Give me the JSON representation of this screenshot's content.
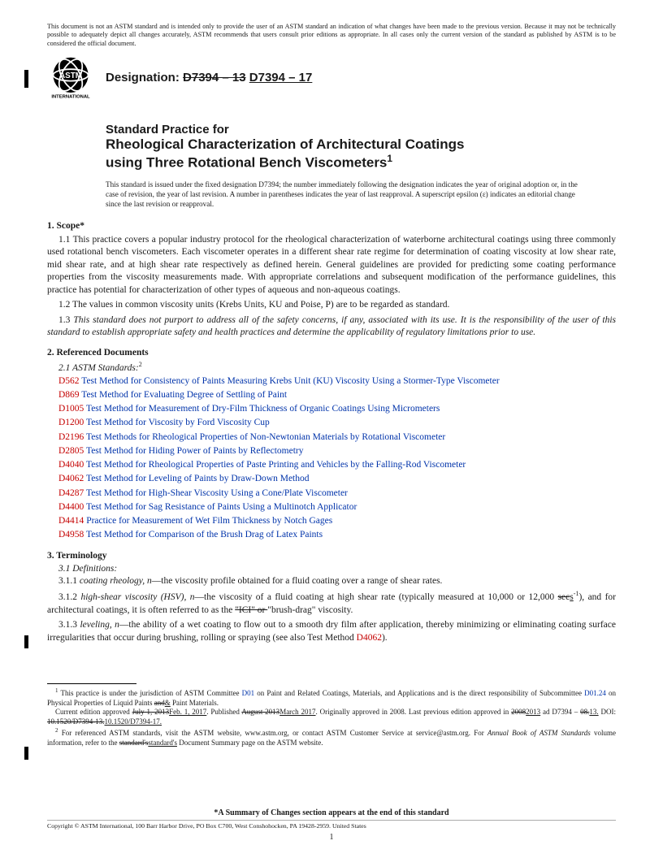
{
  "disclaimer": "This document is not an ASTM standard and is intended only to provide the user of an ASTM standard an indication of what changes have been made to the previous version. Because it may not be technically possible to adequately depict all changes accurately, ASTM recommends that users consult prior editions as appropriate. In all cases only the current version of the standard as published by ASTM is to be considered the official document.",
  "designation": {
    "label": "Designation:",
    "old": "D7394 – 13",
    "new": "D7394 – 17"
  },
  "title": {
    "pre": "Standard Practice for",
    "main1": "Rheological Characterization of Architectural Coatings",
    "main2": "using Three Rotational Bench Viscometers"
  },
  "issued_note": "This standard is issued under the fixed designation D7394; the number immediately following the designation indicates the year of original adoption or, in the case of revision, the year of last revision. A number in parentheses indicates the year of last reapproval. A superscript epsilon (ε) indicates an editorial change since the last revision or reapproval.",
  "sections": {
    "s1": "1. Scope*",
    "p1_1": "1.1 This practice covers a popular industry protocol for the rheological characterization of waterborne architectural coatings using three commonly used rotational bench viscometers. Each viscometer operates in a different shear rate regime for determination of coating viscosity at low shear rate, mid shear rate, and at high shear rate respectively as defined herein. General guidelines are provided for predicting some coating performance properties from the viscosity measurements made. With appropriate correlations and subsequent modification of the performance guidelines, this practice has potential for characterization of other types of aqueous and non-aqueous coatings.",
    "p1_2": "1.2 The values in common viscosity units (Krebs Units, KU and Poise, P) are to be regarded as standard.",
    "p1_3": "1.3 This standard does not purport to address all of the safety concerns, if any, associated with its use. It is the responsibility of the user of this standard to establish appropriate safety and health practices and determine the applicability of regulatory limitations prior to use.",
    "s2": "2. Referenced Documents",
    "p2_1": "2.1 ASTM Standards:",
    "refs": [
      {
        "c": "D562",
        "d": "Test Method for Consistency of Paints Measuring Krebs Unit (KU) Viscosity Using a Stormer-Type Viscometer"
      },
      {
        "c": "D869",
        "d": "Test Method for Evaluating Degree of Settling of Paint"
      },
      {
        "c": "D1005",
        "d": "Test Method for Measurement of Dry-Film Thickness of Organic Coatings Using Micrometers"
      },
      {
        "c": "D1200",
        "d": "Test Method for Viscosity by Ford Viscosity Cup"
      },
      {
        "c": "D2196",
        "d": "Test Methods for Rheological Properties of Non-Newtonian Materials by Rotational Viscometer"
      },
      {
        "c": "D2805",
        "d": "Test Method for Hiding Power of Paints by Reflectometry"
      },
      {
        "c": "D4040",
        "d": "Test Method for Rheological Properties of Paste Printing and Vehicles by the Falling-Rod Viscometer"
      },
      {
        "c": "D4062",
        "d": "Test Method for Leveling of Paints by Draw-Down Method"
      },
      {
        "c": "D4287",
        "d": "Test Method for High-Shear Viscosity Using a Cone/Plate Viscometer"
      },
      {
        "c": "D4400",
        "d": "Test Method for Sag Resistance of Paints Using a Multinotch Applicator"
      },
      {
        "c": "D4414",
        "d": "Practice for Measurement of Wet Film Thickness by Notch Gages"
      },
      {
        "c": "D4958",
        "d": "Test Method for Comparison of the Brush Drag of Latex Paints"
      }
    ],
    "s3": "3. Terminology",
    "p3_1": "3.1 Definitions:",
    "def1_num": "3.1.1 ",
    "def1_term": "coating rheology, n",
    "def1_body": "—the viscosity profile obtained for a fluid coating over a range of shear rates.",
    "def2_num": "3.1.2 ",
    "def2_term": "high-shear viscosity (HSV), n",
    "def2_body_a": "—the viscosity of a fluid coating at high shear rate (typically measured at 10,000 or 12,000 ",
    "def2_strike": "sec",
    "def2_under": "s",
    "def2_body_b": "), and for architectural coatings, it is often referred to as the ",
    "def2_strike2": "\"ICI\" or ",
    "def2_body_c": "\"brush-drag\" viscosity.",
    "def3_num": "3.1.3 ",
    "def3_term": "leveling, n",
    "def3_body": "—the ability of a wet coating to flow out to a smooth dry film after application, thereby minimizing or eliminating coating surface irregularities that occur during brushing, rolling or spraying (see also Test Method ",
    "def3_link": "D4062",
    "def3_end": ")."
  },
  "footnotes": {
    "f1_a": " This practice is under the jurisdiction of ASTM Committee ",
    "f1_link1": "D01",
    "f1_b": " on Paint and Related Coatings, Materials, and Applications and is the direct responsibility of Subcommittee ",
    "f1_link2": "D01.24",
    "f1_c": " on Physical Properties of Liquid Paints ",
    "f1_strike1": "and",
    "f1_under1": "&",
    "f1_d": " Paint Materials.",
    "f1_line2a": "Current edition approved ",
    "f1_strike2": "July 1, 2013",
    "f1_under2": "Feb. 1, 2017",
    "f1_line2b": ". Published ",
    "f1_strike3": "August 2013",
    "f1_under3": "March 2017",
    "f1_line2c": ". Originally approved in 2008. Last previous edition approved in ",
    "f1_strike4": "2008",
    "f1_under4": "2013",
    "f1_line2d": " ad D7394 – ",
    "f1_strike5": "08.",
    "f1_under5": "13.",
    "f1_line2e": " DOI: ",
    "f1_strike6": "10.1520/D7394-13.",
    "f1_under6": "10.1520/D7394-17.",
    "f2_a": " For referenced ASTM standards, visit the ASTM website, www.astm.org, or contact ASTM Customer Service at service@astm.org. For ",
    "f2_it": "Annual Book of ASTM Standards",
    "f2_b": " volume information, refer to the ",
    "f2_strike": "standard's",
    "f2_under": "standard's",
    "f2_c": " Document Summary page on the ASTM website."
  },
  "bottom": {
    "summary": "*A Summary of Changes section appears at the end of this standard",
    "copyright": "Copyright © ASTM International, 100 Barr Harbor Drive, PO Box C700, West Conshohocken, PA 19428-2959. United States",
    "pagenum": "1"
  }
}
